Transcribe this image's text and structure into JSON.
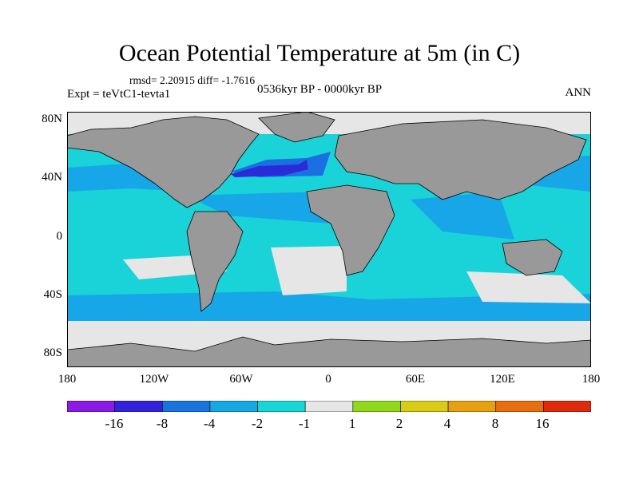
{
  "title": "Ocean Potential Temperature at 5m (in C)",
  "stats": "rmsd= 2.20915 diff= -1.7616",
  "experiment": "Expt = teVtC1-tevta1",
  "period": "0536kyr BP - 0000kyr BP",
  "season": "ANN",
  "lat_labels": [
    "80N",
    "40N",
    "0",
    "40S",
    "80S"
  ],
  "lon_labels": [
    "180",
    "120W",
    "60W",
    "0",
    "60E",
    "120E",
    "180"
  ],
  "colorbar": {
    "labels": [
      "-16",
      "-8",
      "-4",
      "-2",
      "-1",
      "1",
      "2",
      "4",
      "8",
      "16"
    ],
    "colors": [
      "#8a1ae6",
      "#3322dd",
      "#1a74de",
      "#15a9e3",
      "#17d6d6",
      "#e6e6e6",
      "#8fd81a",
      "#d8cc15",
      "#e6a010",
      "#e66e10",
      "#e02a0c"
    ]
  },
  "map_colors": {
    "land": "#999999",
    "strong_cool": "#2a2bd8",
    "moderate_cool": "#1b6fe0",
    "mild_cool": "#17a6e8",
    "slight_cool": "#19d3d8",
    "neutral": "#e6e6e6"
  }
}
